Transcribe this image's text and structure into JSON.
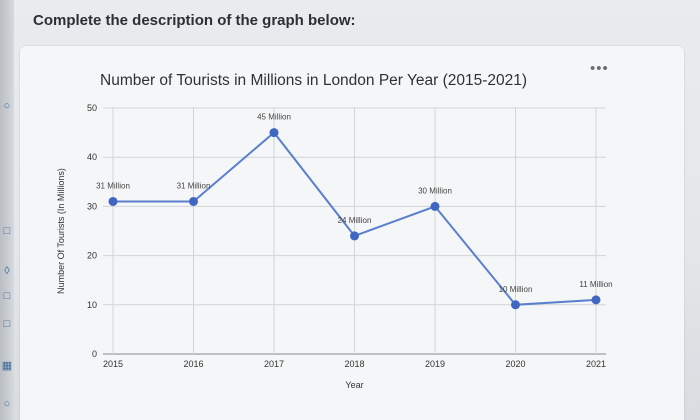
{
  "question": "Complete the description of the graph below:",
  "menu_icon": "more-horizontal-icon",
  "chart_data": {
    "type": "line",
    "title": "Number of Tourists in Millions in London Per Year (2015-2021)",
    "xlabel": "Year",
    "ylabel": "Number Of Tourists (In Millions)",
    "categories": [
      "2015",
      "2016",
      "2017",
      "2018",
      "2019",
      "2020",
      "2021"
    ],
    "values": [
      31,
      31,
      45,
      24,
      30,
      10,
      11
    ],
    "data_labels": [
      "31 Million",
      "31 Million",
      "45 Million",
      "24 Million",
      "30 Million",
      "10 Million",
      "11 Million"
    ],
    "yticks": [
      0,
      10,
      20,
      30,
      40,
      50
    ],
    "ylim": [
      0,
      50
    ],
    "grid": true,
    "line_color": "#5b7fcf",
    "marker_color": "#3e66c2"
  }
}
